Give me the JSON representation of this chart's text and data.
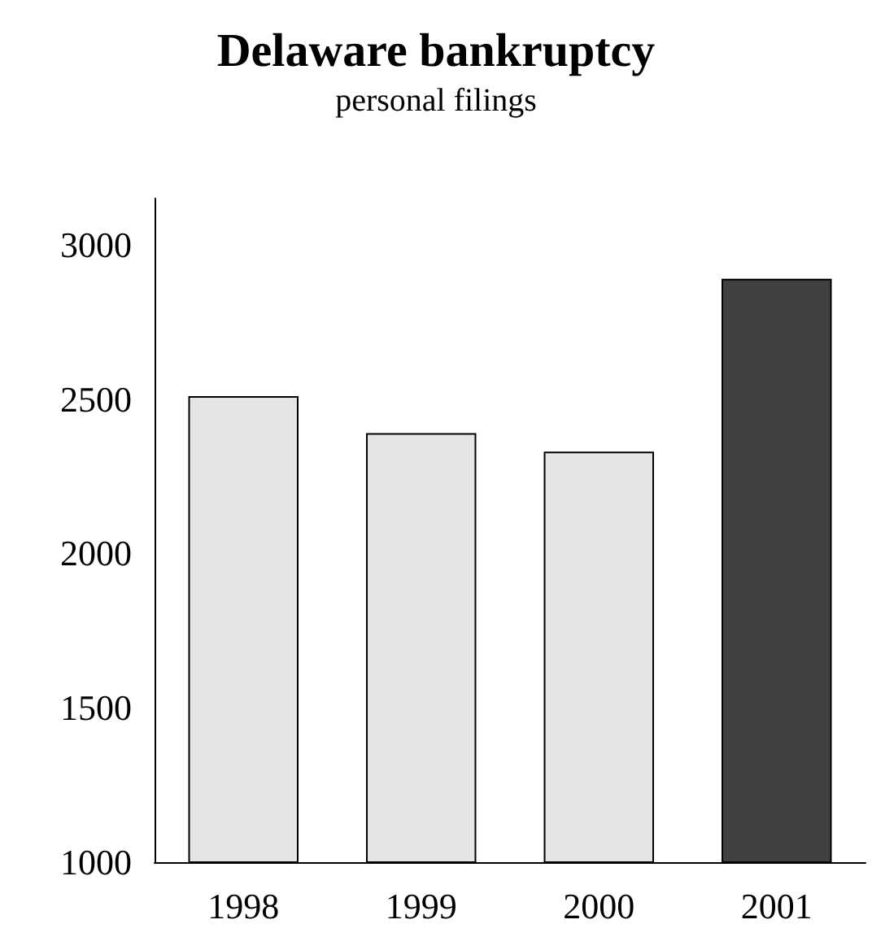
{
  "chart_data": {
    "type": "bar",
    "title": "Delaware bankruptcy",
    "subtitle": "personal filings",
    "categories": [
      "1998",
      "1999",
      "2000",
      "2001"
    ],
    "values": [
      2510,
      2390,
      2330,
      2890
    ],
    "colors": [
      "#e5e5e5",
      "#e5e5e5",
      "#e5e5e5",
      "#404040"
    ],
    "ylim": [
      1000,
      3150
    ],
    "yticks": [
      1000,
      1500,
      2000,
      2500,
      3000
    ],
    "grid": false
  }
}
